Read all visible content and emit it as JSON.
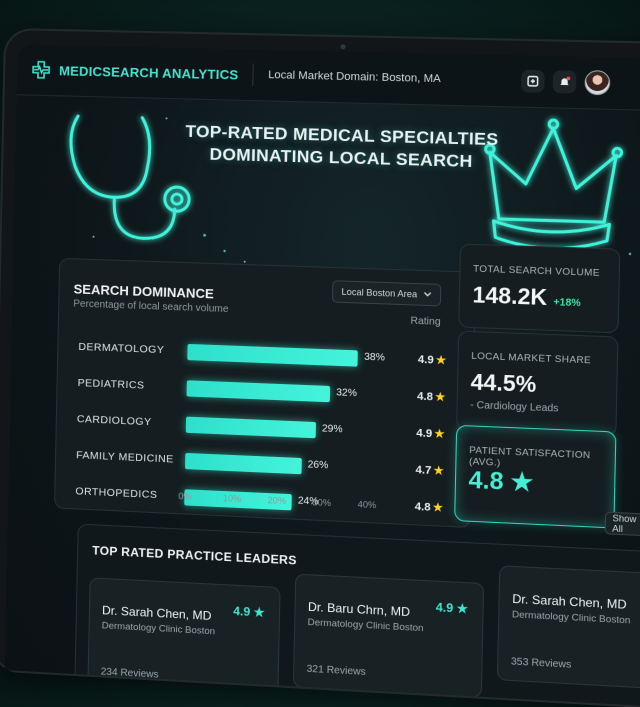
{
  "brand": "MEDICSEARCH ANALYTICS",
  "domain_label": "Local Market Domain: Boston, MA",
  "hero": {
    "line1": "Top-Rated Medical Specialties",
    "line2": "Dominating Local Search"
  },
  "dominance": {
    "title": "Search Dominance",
    "subtitle": "Percentage of local search volume",
    "filter": "Local Boston Area",
    "rating_header": "Rating",
    "axis_ticks": [
      "0%",
      "10%",
      "20%",
      "30%",
      "40%"
    ]
  },
  "chart_data": {
    "type": "bar",
    "orientation": "horizontal",
    "title": "Search Dominance",
    "categories": [
      "Dermatology",
      "Pediatrics",
      "Cardiology",
      "Family Medicine",
      "Orthopedics"
    ],
    "values": [
      38,
      32,
      29,
      26,
      24
    ],
    "value_labels": [
      "38%",
      "32%",
      "29%",
      "26%",
      "24%"
    ],
    "ratings": [
      "4.9",
      "4.8",
      "4.9",
      "4.7",
      "4.8"
    ],
    "xlim": [
      0,
      40
    ],
    "color": "#2de0cc"
  },
  "stats": {
    "total": {
      "label": "Total Search Volume",
      "value": "148.2K",
      "delta": "+18%"
    },
    "share": {
      "label": "Local Market Share",
      "value": "44.5%",
      "note": "- Cardiology Leads"
    },
    "satisfaction": {
      "label": "Patient Satisfaction (Avg.)",
      "value": "4.8",
      "star": "★"
    }
  },
  "show_all": "Show All",
  "leaders": {
    "title": "Top Rated Practice Leaders",
    "cards": [
      {
        "name": "Dr. Sarah Chen, MD",
        "spec": "Dermatology Clinic Boston",
        "rating": "4.9",
        "reviews": "234 Reviews"
      },
      {
        "name": "Dr. Baru Chrn, MD",
        "spec": "Dermatology Clinic Boston",
        "rating": "4.9",
        "reviews": "321 Reviews"
      },
      {
        "name": "Dr. Sarah Chen, MD",
        "spec": "Dermatology Clinic Boston",
        "rating": "",
        "reviews": "353 Reviews"
      }
    ]
  },
  "colors": {
    "accent": "#3fe6cf",
    "star": "#ffd21e",
    "positive": "#3fe6a6"
  },
  "icons": {
    "brand": "medical-cross-pulse-icon",
    "stethoscope": "stethoscope-icon",
    "crown": "crown-icon"
  }
}
